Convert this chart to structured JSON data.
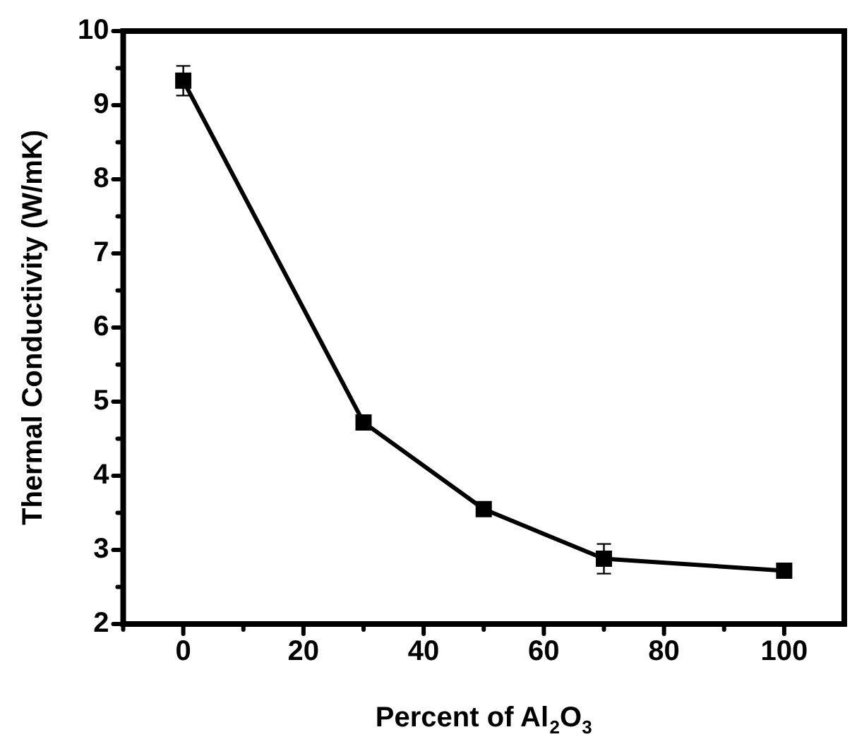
{
  "chart_data": {
    "type": "line",
    "xlabel": "Percent of Al$_{2}$O$_{3}$",
    "ylabel": "Thermal Conductivity (W/mK)",
    "x": [
      0,
      30,
      50,
      70,
      100
    ],
    "series": [
      {
        "color": "#000000",
        "values": [
          9.33,
          4.72,
          3.55,
          2.88,
          2.72
        ],
        "errors": [
          0.2,
          null,
          null,
          0.2,
          null
        ]
      }
    ],
    "xlim": [
      -10,
      110
    ],
    "xticks": [
      {
        "value": -10,
        "label": null
      },
      0,
      {
        "value": 10,
        "label": null
      },
      20,
      {
        "value": 30,
        "label": null
      },
      40,
      {
        "value": 50,
        "label": null
      },
      60,
      {
        "value": 70,
        "label": null
      },
      80,
      {
        "value": 90,
        "label": null
      },
      100
    ],
    "ylim": [
      2,
      10
    ],
    "yticks": [
      2,
      {
        "value": 2.5,
        "label": null
      },
      3,
      {
        "value": 3.5,
        "label": null
      },
      4,
      {
        "value": 4.5,
        "label": null
      },
      5,
      {
        "value": 5.5,
        "label": null
      },
      6,
      {
        "value": 6.5,
        "label": null
      },
      7,
      {
        "value": 7.5,
        "label": null
      },
      8,
      {
        "value": 8.5,
        "label": null
      },
      9,
      {
        "value": 9.5,
        "label": null
      },
      10
    ],
    "marker": "square",
    "line_style": "solid",
    "grid": false,
    "legend": false
  }
}
